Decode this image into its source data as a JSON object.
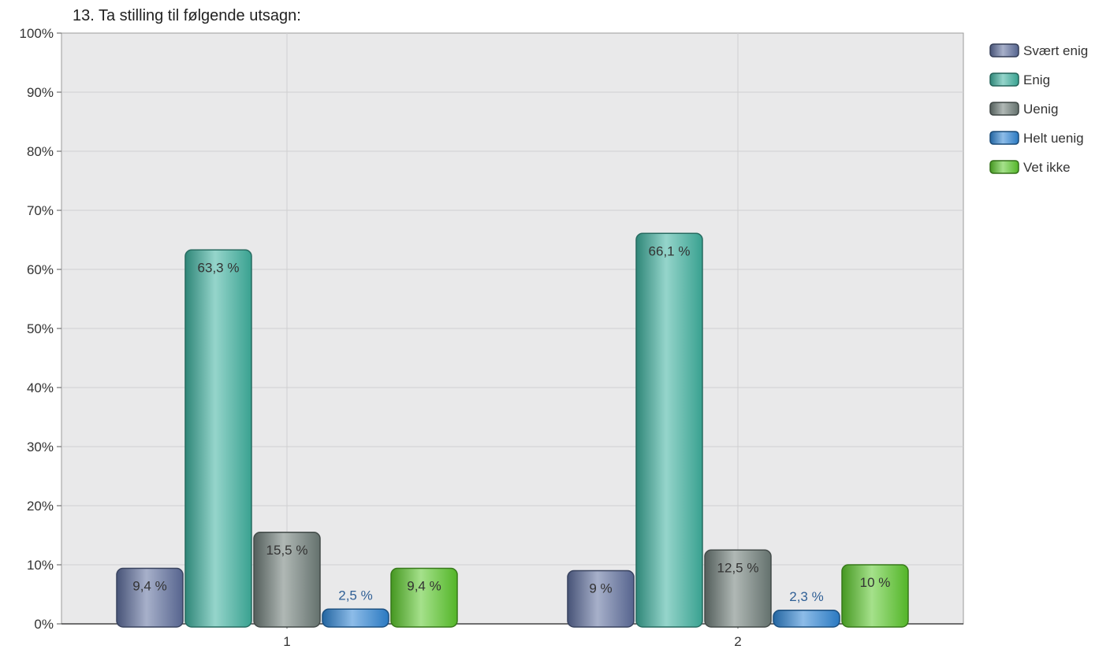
{
  "chart_data": {
    "type": "bar",
    "title": "13. Ta stilling til følgende utsagn:",
    "xlabel": "",
    "ylabel": "",
    "categories": [
      "1",
      "2"
    ],
    "ylim": [
      0,
      100
    ],
    "yticks": [
      "0%",
      "10%",
      "20%",
      "30%",
      "40%",
      "50%",
      "60%",
      "70%",
      "80%",
      "90%",
      "100%"
    ],
    "grid": true,
    "legend_position": "right",
    "series": [
      {
        "name": "Svært enig",
        "color": "#5f6f9e",
        "values": [
          9.4,
          9.0
        ],
        "labels": [
          "9,4 %",
          "9 %"
        ]
      },
      {
        "name": "Enig",
        "color": "#3fb3a0",
        "values": [
          63.3,
          66.1
        ],
        "labels": [
          "63,3 %",
          "66,1 %"
        ]
      },
      {
        "name": "Uenig",
        "color": "#6f7d79",
        "values": [
          15.5,
          12.5
        ],
        "labels": [
          "15,5 %",
          "12,5 %"
        ]
      },
      {
        "name": "Helt uenig",
        "color": "#2f86d6",
        "values": [
          2.5,
          2.3
        ],
        "labels": [
          "2,5 %",
          "2,3 %"
        ]
      },
      {
        "name": "Vet ikke",
        "color": "#5cc92c",
        "values": [
          9.4,
          10.0
        ],
        "labels": [
          "9,4 %",
          "10 %"
        ]
      }
    ]
  }
}
